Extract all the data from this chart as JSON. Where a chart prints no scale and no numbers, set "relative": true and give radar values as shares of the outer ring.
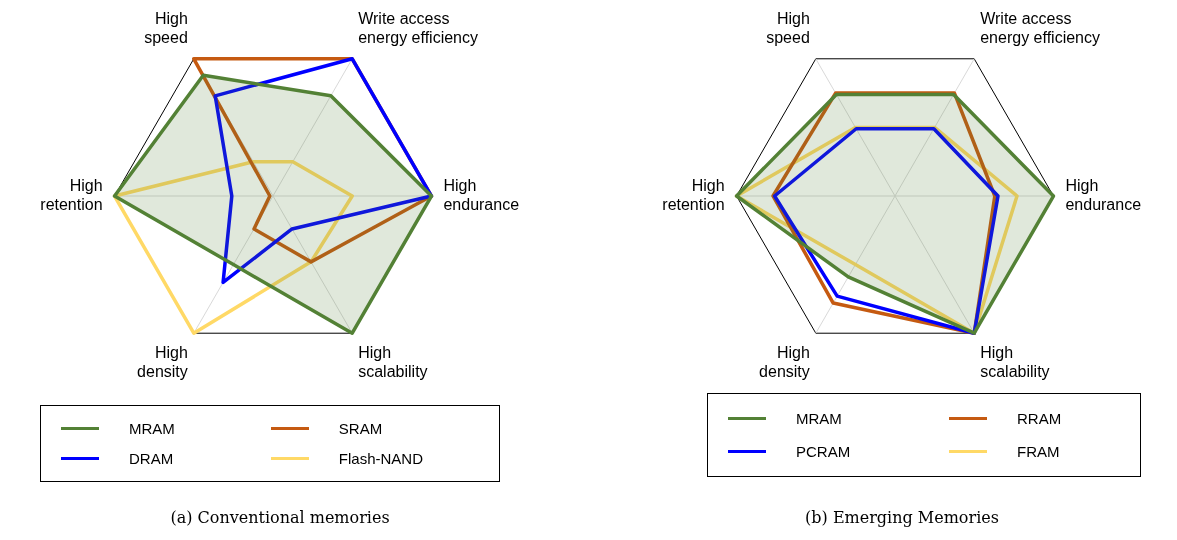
{
  "chart_data": [
    {
      "type": "radar",
      "title": "(a) Conventional memories",
      "relative": true,
      "legend": "bottom",
      "marker": "none",
      "grid": true,
      "categories": [
        "High\nspeed",
        "Write access\nenergy efficiency",
        "High\nendurance",
        "High\nscalability",
        "High\ndensity",
        "High\nretention"
      ],
      "series": [
        {
          "name": "MRAM",
          "color": "#538135",
          "values": [
            0.88,
            0.73,
            1,
            1,
            0.5,
            1
          ]
        },
        {
          "name": "DRAM",
          "color": "#0000ff",
          "values": [
            0.73,
            1,
            1,
            0.24,
            0.63,
            0.26
          ]
        },
        {
          "name": "SRAM",
          "color": "#c55a11",
          "values": [
            1,
            1,
            1,
            0.48,
            0.24,
            0.02
          ]
        },
        {
          "name": "Flash-NAND",
          "color": "#ffd966",
          "values": [
            0.25,
            0.25,
            0.5,
            0.48,
            1,
            1
          ]
        }
      ]
    },
    {
      "type": "radar",
      "title": "(b) Emerging Memories",
      "relative": true,
      "legend": "bottom",
      "marker": "none",
      "grid": true,
      "categories": [
        "High\nspeed",
        "Write access\nenergy efficiency",
        "High\nendurance",
        "High\nscalability",
        "High\ndensity",
        "High\nretention"
      ],
      "series": [
        {
          "name": "MRAM",
          "color": "#538135",
          "values": [
            0.74,
            0.74,
            1,
            1,
            0.59,
            1
          ]
        },
        {
          "name": "PCRAM",
          "color": "#0000ff",
          "values": [
            0.49,
            0.49,
            0.65,
            1,
            0.73,
            0.76
          ]
        },
        {
          "name": "RRAM",
          "color": "#c55a11",
          "values": [
            0.75,
            0.75,
            0.63,
            1,
            0.78,
            0.77
          ]
        },
        {
          "name": "FRAM",
          "color": "#ffd966",
          "values": [
            0.5,
            0.5,
            0.77,
            1,
            0.5,
            1
          ]
        }
      ]
    }
  ]
}
